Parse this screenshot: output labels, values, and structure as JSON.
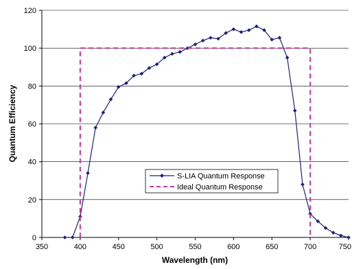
{
  "chart_data": {
    "type": "line",
    "title": "",
    "xlabel": "Wavelength (nm)",
    "ylabel": "Quantum Efficiency",
    "xlim": [
      350,
      750
    ],
    "ylim": [
      0,
      120
    ],
    "xticks": [
      350,
      400,
      450,
      500,
      550,
      600,
      650,
      700,
      750
    ],
    "yticks": [
      0,
      20,
      40,
      60,
      80,
      100,
      120
    ],
    "xtick_labels": [
      "350",
      "400",
      "450",
      "500",
      "550",
      "600",
      "650",
      "700",
      "750"
    ],
    "ytick_labels": [
      "0",
      "20",
      "40",
      "60",
      "80",
      "100",
      "120"
    ],
    "grid": "horizontal",
    "legend_position": "lower-center",
    "series": [
      {
        "name": "S-LIA Quantum Response",
        "color": "#1f1f7a",
        "style": "solid",
        "marker": "diamond",
        "x": [
          380,
          390,
          400,
          410,
          420,
          430,
          440,
          450,
          460,
          470,
          480,
          490,
          500,
          510,
          520,
          530,
          540,
          550,
          560,
          570,
          580,
          590,
          600,
          610,
          620,
          630,
          640,
          650,
          660,
          670,
          680,
          690,
          700,
          710,
          720,
          730,
          740,
          750
        ],
        "y": [
          0,
          0,
          11,
          34,
          58,
          66,
          73,
          79.5,
          81.5,
          85.5,
          86.5,
          89.5,
          91.5,
          95,
          97,
          98,
          100,
          102,
          104,
          105.5,
          105,
          108,
          110,
          108.5,
          109.5,
          111.5,
          109.5,
          104.5,
          105.5,
          95,
          67,
          28,
          12.5,
          8.5,
          5,
          2.5,
          1,
          0
        ]
      },
      {
        "name": "Ideal Quantum Response",
        "color": "#c0389a",
        "style": "dashed",
        "marker": "none",
        "x": [
          400,
          400,
          700,
          700
        ],
        "y": [
          0,
          100,
          100,
          0
        ]
      }
    ]
  }
}
